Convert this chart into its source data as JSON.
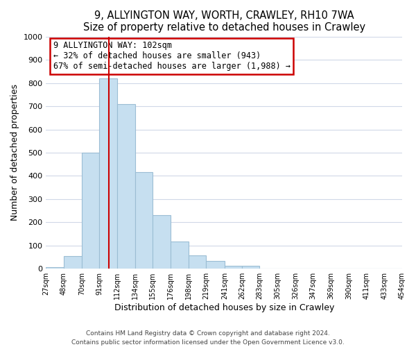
{
  "title": "9, ALLYINGTON WAY, WORTH, CRAWLEY, RH10 7WA",
  "subtitle": "Size of property relative to detached houses in Crawley",
  "xlabel": "Distribution of detached houses by size in Crawley",
  "ylabel": "Number of detached properties",
  "bar_edges": [
    27,
    48,
    70,
    91,
    112,
    134,
    155,
    176,
    198,
    219,
    241,
    262,
    283,
    305,
    326,
    347,
    369,
    390,
    411,
    433,
    454
  ],
  "bar_heights": [
    8,
    55,
    500,
    820,
    710,
    415,
    230,
    118,
    57,
    35,
    12,
    12,
    0,
    0,
    0,
    0,
    0,
    0,
    0,
    0
  ],
  "bar_color": "#c6dff0",
  "bar_edgecolor": "#9bbdd4",
  "property_sqm": 102,
  "vline_color": "#cc0000",
  "annotation_text": "9 ALLYINGTON WAY: 102sqm\n← 32% of detached houses are smaller (943)\n67% of semi-detached houses are larger (1,988) →",
  "annotation_box_edgecolor": "#cc0000",
  "annotation_box_facecolor": "#ffffff",
  "ylim": [
    0,
    1000
  ],
  "footer_line1": "Contains HM Land Registry data © Crown copyright and database right 2024.",
  "footer_line2": "Contains public sector information licensed under the Open Government Licence v3.0.",
  "tick_labels": [
    "27sqm",
    "48sqm",
    "70sqm",
    "91sqm",
    "112sqm",
    "134sqm",
    "155sqm",
    "176sqm",
    "198sqm",
    "219sqm",
    "241sqm",
    "262sqm",
    "283sqm",
    "305sqm",
    "326sqm",
    "347sqm",
    "369sqm",
    "390sqm",
    "411sqm",
    "433sqm",
    "454sqm"
  ],
  "background_color": "#ffffff",
  "grid_color": "#d0d8e8",
  "yticks": [
    0,
    100,
    200,
    300,
    400,
    500,
    600,
    700,
    800,
    900,
    1000
  ]
}
